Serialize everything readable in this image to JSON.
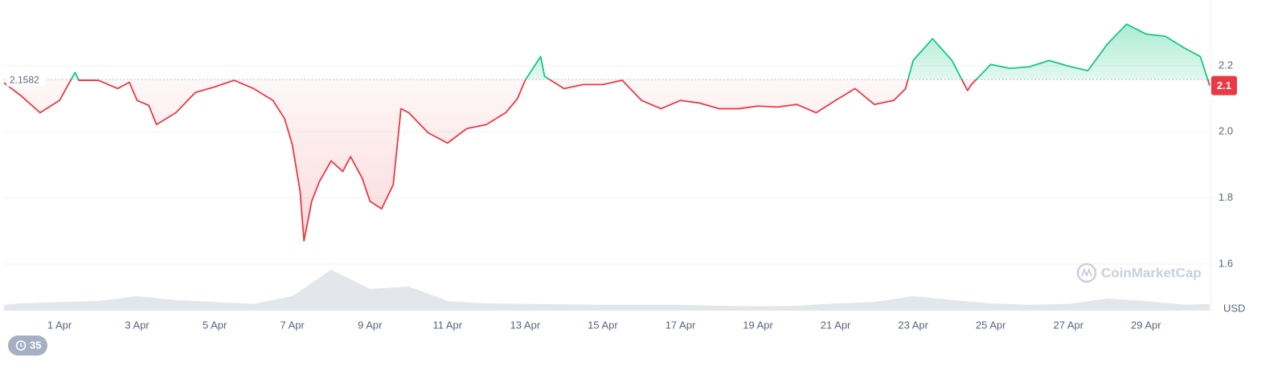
{
  "chart_data": {
    "type": "line",
    "x": [
      -0.43,
      0,
      0.5,
      1,
      1.4,
      1.5,
      2,
      2.5,
      2.8,
      3,
      3.3,
      3.5,
      4,
      4.5,
      5,
      5.5,
      6,
      6.5,
      6.8,
      7,
      7.2,
      7.3,
      7.5,
      7.7,
      8,
      8.3,
      8.5,
      8.8,
      9,
      9.3,
      9.6,
      9.8,
      10,
      10.5,
      11,
      11.5,
      12,
      12.5,
      12.8,
      13,
      13.4,
      13.5,
      14,
      14.5,
      15,
      15.5,
      16,
      16.5,
      17,
      17.5,
      18,
      18.5,
      19,
      19.5,
      20,
      20.5,
      21,
      21.5,
      22,
      22.5,
      22.8,
      23,
      23.5,
      24,
      24.4,
      24.5,
      25,
      25.5,
      26,
      26.5,
      27,
      27.5,
      28,
      28.5,
      29,
      29.5,
      30,
      30.4,
      30.64
    ],
    "values": [
      2.148,
      2.11,
      2.058,
      2.095,
      2.18,
      2.156,
      2.156,
      2.131,
      2.15,
      2.095,
      2.08,
      2.022,
      2.058,
      2.119,
      2.136,
      2.156,
      2.131,
      2.095,
      2.04,
      1.961,
      1.82,
      1.67,
      1.79,
      1.85,
      1.912,
      1.88,
      1.925,
      1.86,
      1.79,
      1.767,
      1.84,
      2.07,
      2.058,
      1.997,
      1.966,
      2.01,
      2.022,
      2.058,
      2.1,
      2.156,
      2.228,
      2.168,
      2.131,
      2.143,
      2.143,
      2.156,
      2.095,
      2.07,
      2.095,
      2.087,
      2.07,
      2.07,
      2.078,
      2.075,
      2.083,
      2.058,
      2.095,
      2.131,
      2.083,
      2.095,
      2.13,
      2.216,
      2.282,
      2.216,
      2.125,
      2.143,
      2.204,
      2.192,
      2.197,
      2.216,
      2.199,
      2.185,
      2.265,
      2.326,
      2.296,
      2.289,
      2.253,
      2.228,
      2.14
    ],
    "last_value_label": "2.1",
    "baseline": 2.1582,
    "up_color": "#16c784",
    "down_color": "#ea3943",
    "xlim": [
      -0.43,
      30.64
    ],
    "xticks": [
      {
        "value": 1,
        "label": "1 Apr"
      },
      {
        "value": 3,
        "label": "3 Apr"
      },
      {
        "value": 5,
        "label": "5 Apr"
      },
      {
        "value": 7,
        "label": "7 Apr"
      },
      {
        "value": 9,
        "label": "9 Apr"
      },
      {
        "value": 11,
        "label": "11 Apr"
      },
      {
        "value": 13,
        "label": "13 Apr"
      },
      {
        "value": 15,
        "label": "15 Apr"
      },
      {
        "value": 17,
        "label": "17 Apr"
      },
      {
        "value": 19,
        "label": "19 Apr"
      },
      {
        "value": 21,
        "label": "21 Apr"
      },
      {
        "value": 23,
        "label": "23 Apr"
      },
      {
        "value": 25,
        "label": "25 Apr"
      },
      {
        "value": 27,
        "label": "27 Apr"
      },
      {
        "value": 29,
        "label": "29 Apr"
      }
    ],
    "ylim": [
      1.459,
      2.399
    ],
    "yticks": [
      1.6,
      1.8,
      {
        "value": 2,
        "label": "2.0"
      },
      2.2
    ],
    "grid": true,
    "y_unit": "USD",
    "volume": {
      "x": [
        -0.43,
        0,
        1,
        2,
        3,
        4,
        5,
        6,
        7,
        8,
        9,
        10,
        11,
        12,
        13,
        14,
        15,
        16,
        17,
        18,
        19,
        20,
        21,
        22,
        23,
        24,
        25,
        26,
        27,
        28,
        29,
        30,
        30.64
      ],
      "values": [
        12,
        15,
        18,
        20,
        30,
        22,
        18,
        14,
        30,
        85,
        45,
        50,
        20,
        15,
        14,
        13,
        12,
        12,
        12,
        10,
        9,
        10,
        15,
        18,
        30,
        22,
        15,
        12,
        14,
        25,
        20,
        12,
        14
      ],
      "ylim": [
        0,
        100
      ],
      "color": "#e3e6eb"
    },
    "watermark": "CoinMarketCap",
    "badge": "35"
  }
}
